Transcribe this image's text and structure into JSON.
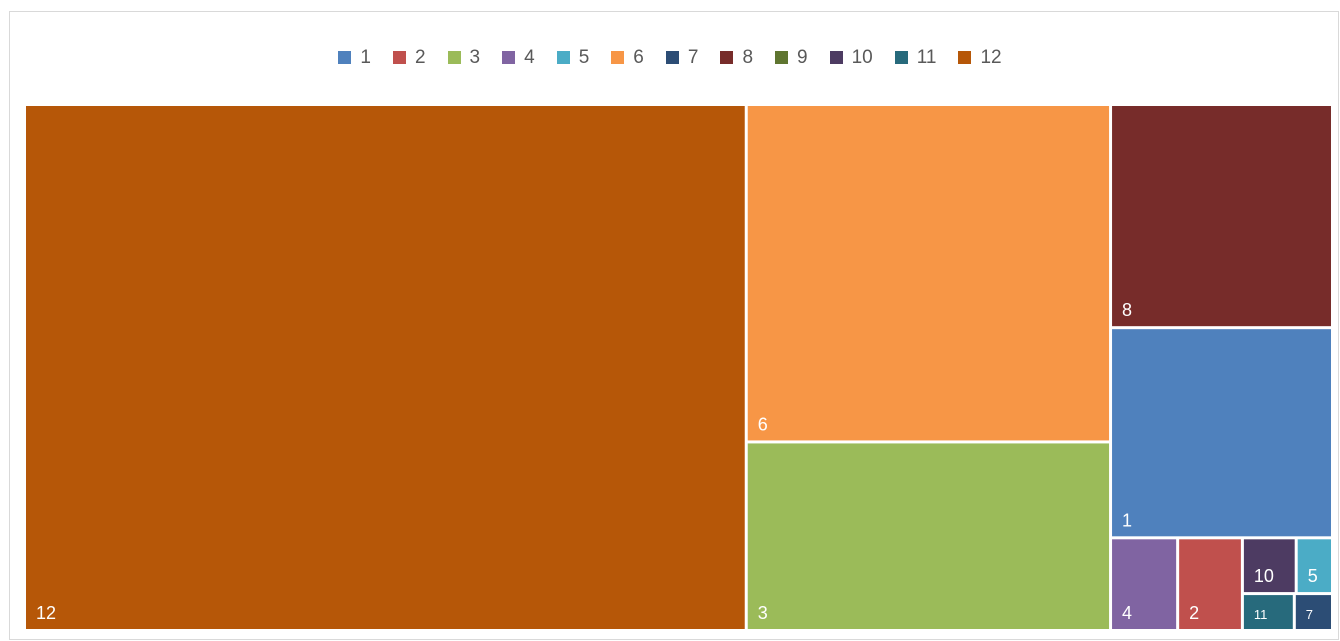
{
  "chart_data": {
    "type": "treemap",
    "title": "",
    "legend_position": "top",
    "series": [
      {
        "name": "1",
        "value": 12.9,
        "color": "#4F81BD"
      },
      {
        "name": "2",
        "value": 1.66,
        "color": "#C0504D"
      },
      {
        "name": "3",
        "value": 19.0,
        "color": "#9BBB59"
      },
      {
        "name": "4",
        "value": 1.72,
        "color": "#8064A2"
      },
      {
        "name": "5",
        "value": 0.56,
        "color": "#4BACC6"
      },
      {
        "name": "6",
        "value": 34.0,
        "color": "#F79646"
      },
      {
        "name": "7",
        "value": 0.39,
        "color": "#2C4D75"
      },
      {
        "name": "8",
        "value": 13.7,
        "color": "#772C2A"
      },
      {
        "name": "9",
        "value": 0,
        "color": "#5F7530"
      },
      {
        "name": "10",
        "value": 0.83,
        "color": "#4D3B62"
      },
      {
        "name": "11",
        "value": 0.53,
        "color": "#276A7C"
      },
      {
        "name": "12",
        "value": 105.0,
        "color": "#B65708"
      }
    ]
  }
}
